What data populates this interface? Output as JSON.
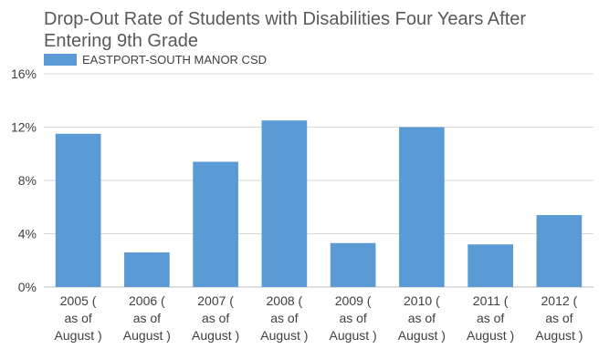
{
  "chart_data": {
    "type": "bar",
    "title_lines": [
      "Drop-Out Rate of Students with Disabilities Four Years After",
      "Entering 9th Grade"
    ],
    "legend_position": "top-left",
    "grid": true,
    "ylim": [
      0,
      16
    ],
    "yticks": [
      0,
      4,
      8,
      12,
      16
    ],
    "ytick_labels": [
      "0%",
      "4%",
      "8%",
      "12%",
      "16%"
    ],
    "categories": [
      [
        "2005 (",
        "as of",
        "August )"
      ],
      [
        "2006 (",
        "as of",
        "August )"
      ],
      [
        "2007 (",
        "as of",
        "August )"
      ],
      [
        "2008 (",
        "as of",
        "August )"
      ],
      [
        "2009 (",
        "as of",
        "August )"
      ],
      [
        "2010 (",
        "as of",
        "August )"
      ],
      [
        "2011 (",
        "as of",
        "August )"
      ],
      [
        "2012 (",
        "as of",
        "August )"
      ]
    ],
    "series": [
      {
        "name": "EASTPORT-SOUTH MANOR CSD",
        "color": "#5b9bd5",
        "values": [
          11.5,
          2.6,
          9.4,
          12.5,
          3.3,
          12.0,
          3.2,
          5.4
        ]
      }
    ]
  }
}
